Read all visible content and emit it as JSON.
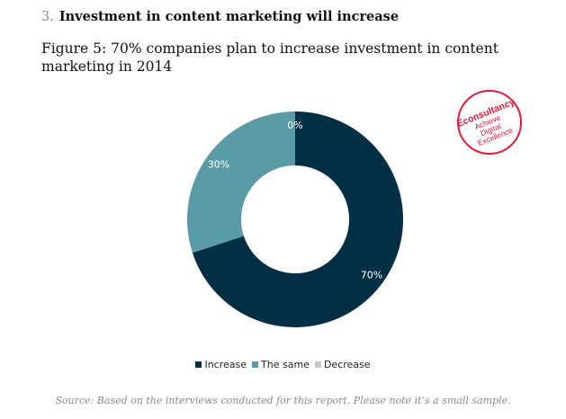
{
  "header": {
    "section_number": "3.",
    "section_title": "Investment in content marketing will increase",
    "figure_title": "Figure 5: 70% companies plan to increase investment in content marketing in 2014"
  },
  "logo": {
    "brand": "Econsultancy",
    "tagline_1": "Achieve",
    "tagline_2": "Digital",
    "tagline_3": "Excellence",
    "trademark": "™",
    "color": "#e31b3b"
  },
  "chart_data": {
    "type": "pie",
    "subtype": "donut",
    "categories": [
      "Increase",
      "The same",
      "Decrease"
    ],
    "values": [
      70,
      30,
      0
    ],
    "labels": [
      "70%",
      "30%",
      "0%"
    ],
    "colors": [
      "#022f44",
      "#5b9ba5",
      "#c8c8c8"
    ],
    "legend_position": "bottom"
  },
  "footer": {
    "source": "Source: Based on the interviews conducted for this report. Please note it’s a small sample."
  }
}
